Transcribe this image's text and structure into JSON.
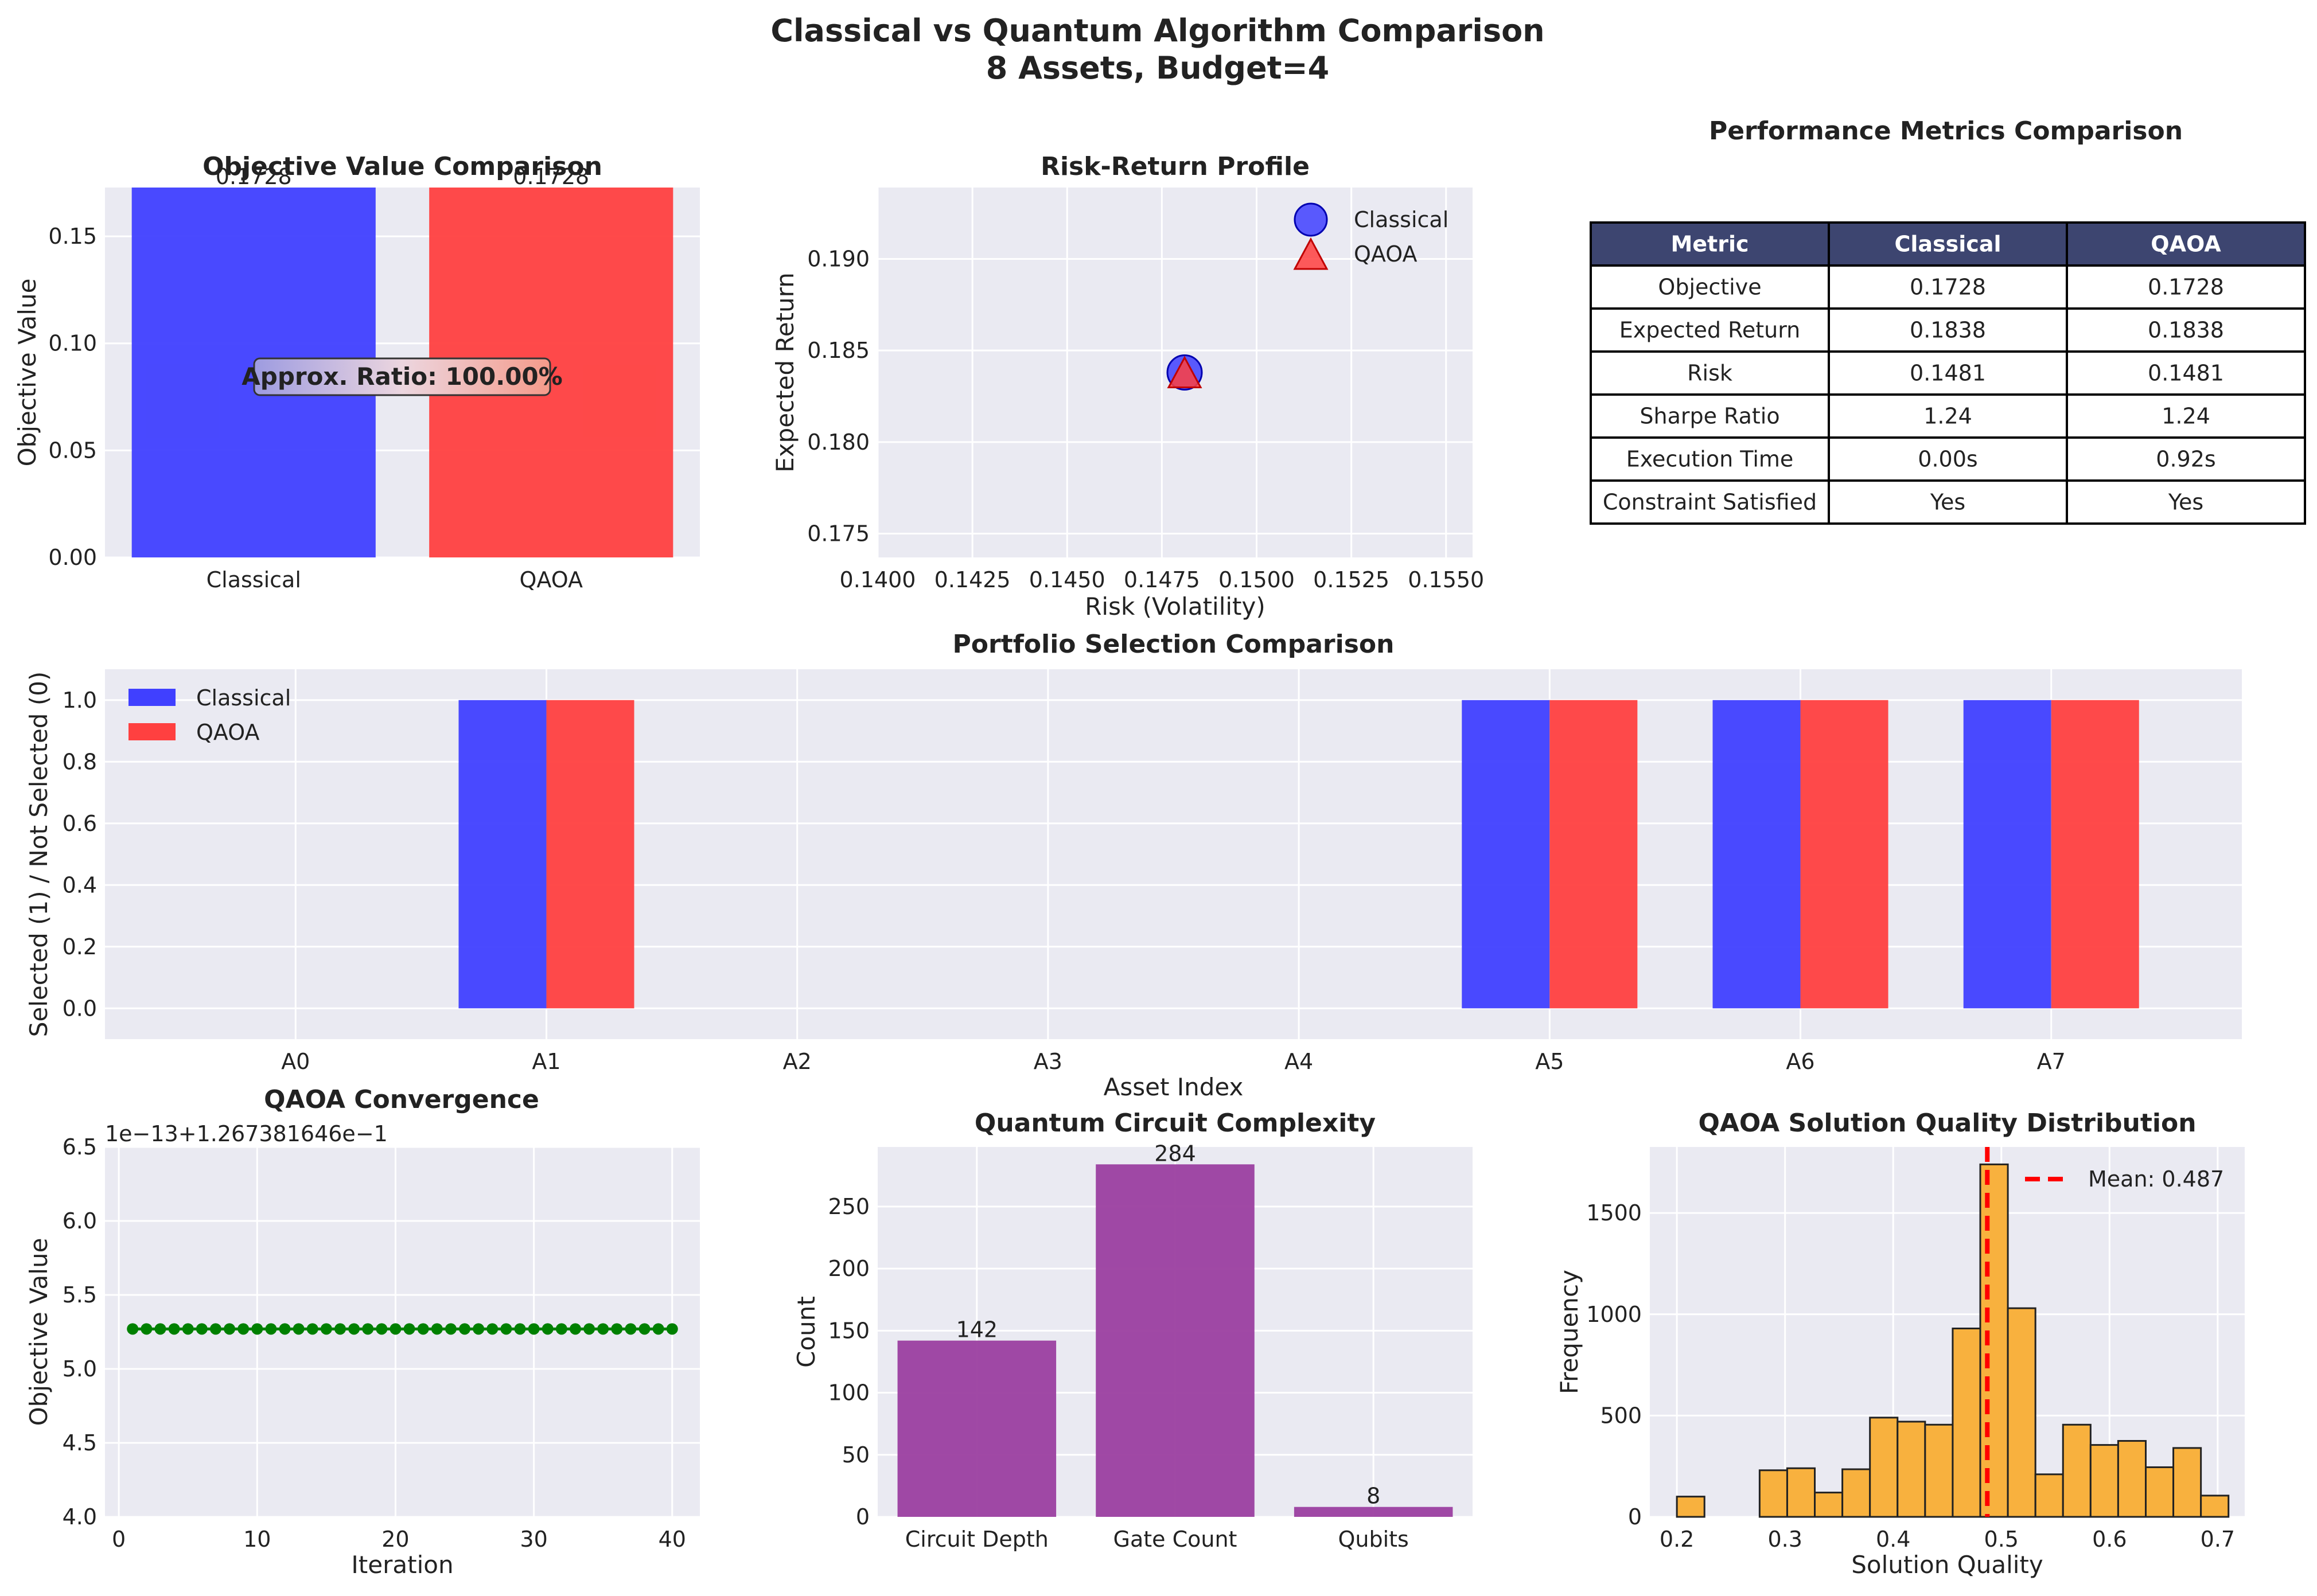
{
  "figure": {
    "title_line1": "Classical vs Quantum Algorithm Comparison",
    "title_line2": "8 Assets, Budget=4"
  },
  "colors": {
    "classical": "#4040ff",
    "qaoa": "#ff4040",
    "convergence": "#008000",
    "purple": "#9b3fa0",
    "orange": "#f8b13e",
    "table_header": "#3d4570",
    "panel_bg": "#eaeaf2"
  },
  "chart_data": [
    {
      "id": "objective",
      "type": "bar",
      "title": "Objective Value Comparison",
      "categories": [
        "Classical",
        "QAOA"
      ],
      "values": [
        0.1728,
        0.1728
      ],
      "value_labels": [
        "0.1728",
        "0.1728"
      ],
      "ylabel": "Objective Value",
      "ylim": [
        0,
        0.1728
      ],
      "yticks": [
        0.0,
        0.05,
        0.1,
        0.15
      ],
      "ytick_labels": [
        "0.00",
        "0.05",
        "0.10",
        "0.15"
      ],
      "annotation": "Approx. Ratio: 100.00%"
    },
    {
      "id": "risk_return",
      "type": "scatter",
      "title": "Risk-Return Profile",
      "xlabel": "Risk (Volatility)",
      "ylabel": "Expected Return",
      "xlim": [
        0.14,
        0.1557
      ],
      "ylim": [
        0.1737,
        0.1939
      ],
      "xticks": [
        0.14,
        0.1425,
        0.145,
        0.1475,
        0.15,
        0.1525,
        0.155
      ],
      "xtick_labels": [
        "0.1400",
        "0.1425",
        "0.1450",
        "0.1475",
        "0.1500",
        "0.1525",
        "0.1550"
      ],
      "yticks": [
        0.175,
        0.18,
        0.185,
        0.19
      ],
      "ytick_labels": [
        "0.175",
        "0.180",
        "0.185",
        "0.190"
      ],
      "series": [
        {
          "name": "Classical",
          "marker": "circle",
          "x": [
            0.1481
          ],
          "y": [
            0.1838
          ]
        },
        {
          "name": "QAOA",
          "marker": "triangle",
          "x": [
            0.1481
          ],
          "y": [
            0.1838
          ]
        }
      ],
      "legend": "top-right"
    },
    {
      "id": "metrics",
      "type": "table",
      "title": "Performance Metrics Comparison",
      "columns": [
        "Metric",
        "Classical",
        "QAOA"
      ],
      "rows": [
        [
          "Objective",
          "0.1728",
          "0.1728"
        ],
        [
          "Expected Return",
          "0.1838",
          "0.1838"
        ],
        [
          "Risk",
          "0.1481",
          "0.1481"
        ],
        [
          "Sharpe Ratio",
          "1.24",
          "1.24"
        ],
        [
          "Execution Time",
          "0.00s",
          "0.92s"
        ],
        [
          "Constraint Satisfied",
          "Yes",
          "Yes"
        ]
      ]
    },
    {
      "id": "selection",
      "type": "bar",
      "title": "Portfolio Selection Comparison",
      "xlabel": "Asset Index",
      "ylabel": "Selected (1) / Not Selected (0)",
      "categories": [
        "A0",
        "A1",
        "A2",
        "A3",
        "A4",
        "A5",
        "A6",
        "A7"
      ],
      "series": [
        {
          "name": "Classical",
          "values": [
            0,
            1,
            0,
            0,
            0,
            1,
            1,
            1
          ]
        },
        {
          "name": "QAOA",
          "values": [
            0,
            1,
            0,
            0,
            0,
            1,
            1,
            1
          ]
        }
      ],
      "ylim": [
        -0.1,
        1.1
      ],
      "yticks": [
        0.0,
        0.2,
        0.4,
        0.6,
        0.8,
        1.0
      ],
      "ytick_labels": [
        "0.0",
        "0.2",
        "0.4",
        "0.6",
        "0.8",
        "1.0"
      ],
      "legend": "top-left"
    },
    {
      "id": "convergence",
      "type": "line",
      "title": "QAOA Convergence",
      "xlabel": "Iteration",
      "ylabel": "Objective Value",
      "offset_text": "1e−13+1.267381646e−1",
      "x_start": 1,
      "x_end": 40,
      "y_value": 5.27,
      "xlim": [
        -1,
        42
      ],
      "ylim": [
        4.0,
        6.5
      ],
      "xticks": [
        0,
        10,
        20,
        30,
        40
      ],
      "xtick_labels": [
        "0",
        "10",
        "20",
        "30",
        "40"
      ],
      "yticks": [
        4.0,
        4.5,
        5.0,
        5.5,
        6.0,
        6.5
      ],
      "ytick_labels": [
        "4.0",
        "4.5",
        "5.0",
        "5.5",
        "6.0",
        "6.5"
      ]
    },
    {
      "id": "circuit",
      "type": "bar",
      "title": "Quantum Circuit Complexity",
      "ylabel": "Count",
      "categories": [
        "Circuit Depth",
        "Gate Count",
        "Qubits"
      ],
      "values": [
        142,
        284,
        8
      ],
      "value_labels": [
        "142",
        "284",
        "8"
      ],
      "ylim": [
        0,
        298
      ],
      "yticks": [
        0,
        50,
        100,
        150,
        200,
        250
      ],
      "ytick_labels": [
        "0",
        "50",
        "100",
        "150",
        "200",
        "250"
      ]
    },
    {
      "id": "distribution",
      "type": "bar",
      "title": "QAOA Solution Quality Distribution",
      "xlabel": "Solution Quality",
      "ylabel": "Frequency",
      "bin_start": 0.2,
      "bin_width": 0.0255,
      "counts": [
        100,
        0,
        0,
        230,
        240,
        120,
        235,
        490,
        470,
        455,
        930,
        1740,
        1030,
        210,
        455,
        355,
        375,
        245,
        340,
        105
      ],
      "mean_value": 0.487,
      "mean_label": "Mean: 0.487",
      "xlim": [
        0.175,
        0.725
      ],
      "ylim": [
        0,
        1826
      ],
      "xticks": [
        0.2,
        0.3,
        0.4,
        0.5,
        0.6,
        0.7
      ],
      "xtick_labels": [
        "0.2",
        "0.3",
        "0.4",
        "0.5",
        "0.6",
        "0.7"
      ],
      "yticks": [
        0,
        500,
        1000,
        1500
      ],
      "ytick_labels": [
        "0",
        "500",
        "1000",
        "1500"
      ]
    }
  ]
}
